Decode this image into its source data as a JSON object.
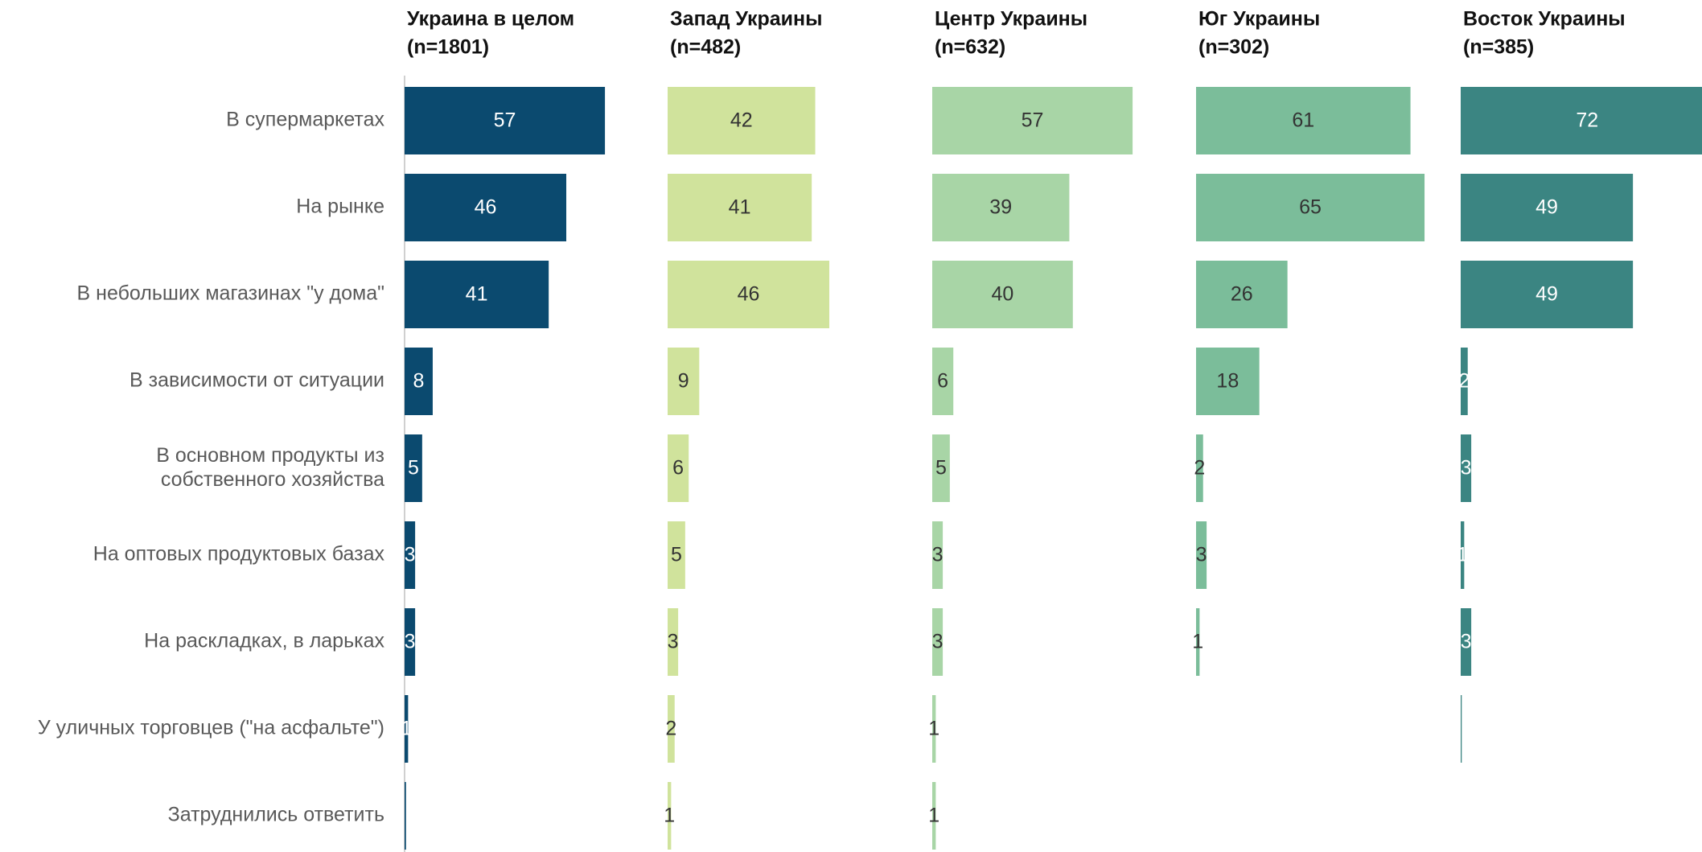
{
  "chart_data": {
    "type": "bar",
    "categories": [
      "В супермаркетах",
      "На рынке",
      "В небольших магазинах \"у дома\"",
      "В зависимости от ситуации",
      "В основном продукты из\nсобственного хозяйства",
      "На оптовых продуктовых базах",
      "На раскладках, в ларьках",
      "У уличных торговцев (\"на асфальте\")",
      "Затруднились ответить"
    ],
    "xlim": [
      0,
      75
    ],
    "series": [
      {
        "name": "Украина в целом",
        "subtitle": "(n=1801)",
        "color": "#0b4a6f",
        "label_color": "#ffffff",
        "values": [
          57,
          46,
          41,
          8,
          5,
          3,
          3,
          1,
          0.4
        ],
        "value_labels": [
          "57",
          "46",
          "41",
          "8",
          "5",
          "3",
          "3",
          "1",
          null
        ]
      },
      {
        "name": "Запад Украины",
        "subtitle": "(n=482)",
        "color": "#d0e39c",
        "label_color": "#333333",
        "values": [
          42,
          41,
          46,
          9,
          6,
          5,
          3,
          2,
          1
        ]
      },
      {
        "name": "Центр Украины",
        "subtitle": "(n=632)",
        "color": "#a8d5a6",
        "label_color": "#333333",
        "values": [
          57,
          39,
          40,
          6,
          5,
          3,
          3,
          1,
          1
        ]
      },
      {
        "name": "Юг Украины",
        "subtitle": "(n=302)",
        "color": "#7bbd9a",
        "label_color": "#333333",
        "values": [
          61,
          65,
          26,
          18,
          2,
          3,
          1,
          null,
          null
        ]
      },
      {
        "name": "Восток Украины",
        "subtitle": "(n=385)",
        "color": "#3b8582",
        "label_color": "#ffffff",
        "values": [
          72,
          49,
          49,
          2,
          3,
          1,
          3,
          0.3,
          null
        ],
        "value_labels": [
          "72",
          "49",
          "49",
          "2",
          "3",
          "1",
          "3",
          null,
          null
        ]
      }
    ]
  }
}
